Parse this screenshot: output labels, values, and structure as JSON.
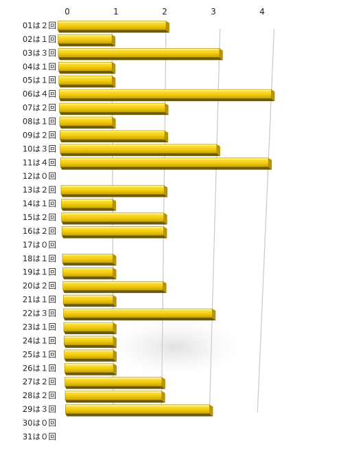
{
  "chart_data": {
    "type": "bar",
    "orientation": "horizontal",
    "style": "3d",
    "grid": true,
    "xlim": [
      0,
      4
    ],
    "x_ticks": [
      "0",
      "1",
      "2",
      "3",
      "4"
    ],
    "categories": [
      "01は２回",
      "02は１回",
      "03は３回",
      "04は１回",
      "05は１回",
      "06は４回",
      "07は２回",
      "08は１回",
      "09は２回",
      "10は３回",
      "11は４回",
      "12は０回",
      "13は２回",
      "14は１回",
      "15は２回",
      "16は２回",
      "17は０回",
      "18は１回",
      "19は１回",
      "20は２回",
      "21は１回",
      "22は３回",
      "23は１回",
      "24は１回",
      "25は１回",
      "26は１回",
      "27は２回",
      "28は２回",
      "29は３回",
      "30は０回",
      "31は０回"
    ],
    "values": [
      2,
      1,
      3,
      1,
      1,
      4,
      2,
      1,
      2,
      3,
      4,
      0,
      2,
      1,
      2,
      2,
      0,
      1,
      1,
      2,
      1,
      3,
      1,
      1,
      1,
      1,
      2,
      2,
      3,
      0,
      0
    ],
    "colors": {
      "bar_face": "#f2cc0c",
      "bar_top": "#ffe24a",
      "bar_shadow": "#6e5a00",
      "bar_side": "#b89400",
      "grid": "#c8c8c8"
    }
  }
}
